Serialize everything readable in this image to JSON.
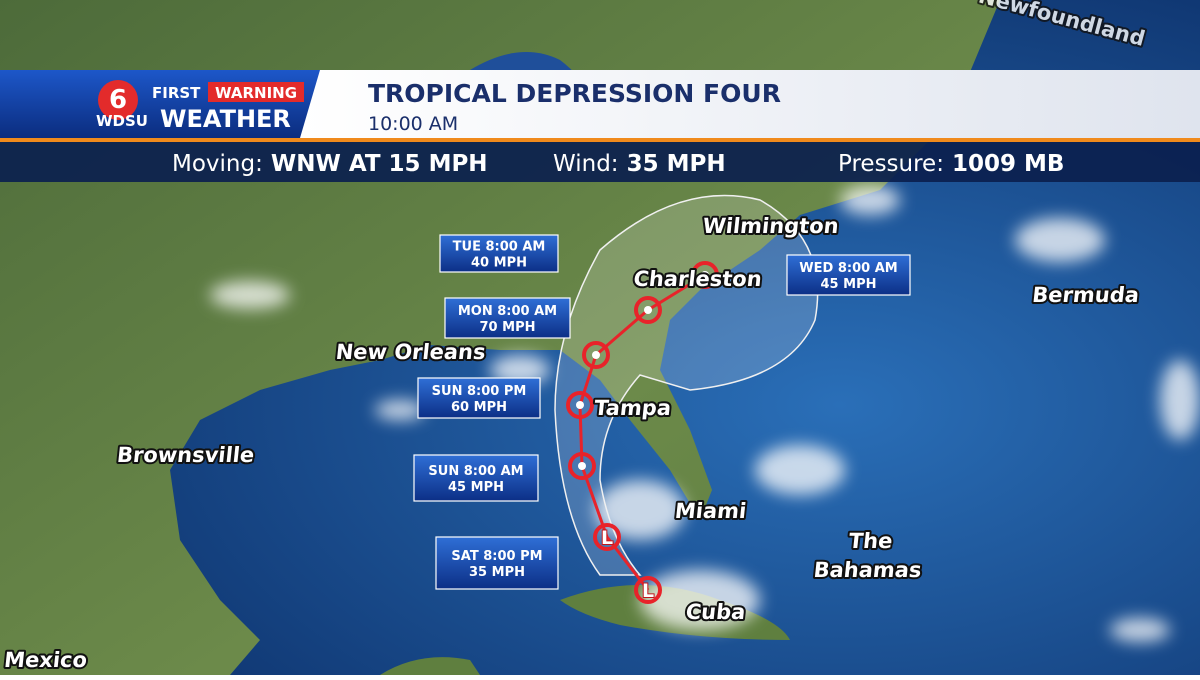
{
  "logo": {
    "number": "6",
    "first": "FIRST",
    "warning": "WARNING",
    "station": "WDSU",
    "weather": "WEATHER"
  },
  "header": {
    "title": "TROPICAL DEPRESSION FOUR",
    "time": "10:00 AM"
  },
  "stats": [
    {
      "label": "Moving:",
      "value": "WNW AT 15 MPH"
    },
    {
      "label": "Wind:",
      "value": "35 MPH"
    },
    {
      "label": "Pressure:",
      "value": "1009 MB"
    }
  ],
  "current": {
    "symbol": "L"
  },
  "forecast": [
    {
      "time": "SAT 8:00 PM",
      "wind": "35 MPH",
      "symbol": "L"
    },
    {
      "time": "SUN 8:00 AM",
      "wind": "45 MPH"
    },
    {
      "time": "SUN 8:00 PM",
      "wind": "60 MPH"
    },
    {
      "time": "MON 8:00 AM",
      "wind": "70 MPH"
    },
    {
      "time": "TUE 8:00 AM",
      "wind": "40 MPH"
    },
    {
      "time": "WED 8:00 AM",
      "wind": "45 MPH"
    }
  ],
  "places": [
    {
      "lines": [
        "Wilmington"
      ]
    },
    {
      "lines": [
        "Charleston"
      ]
    },
    {
      "lines": [
        "New Orleans"
      ]
    },
    {
      "lines": [
        "Tampa"
      ]
    },
    {
      "lines": [
        "Brownsville"
      ]
    },
    {
      "lines": [
        "Miami"
      ]
    },
    {
      "lines": [
        "The",
        "Bahamas"
      ]
    },
    {
      "lines": [
        "Cuba"
      ]
    },
    {
      "lines": [
        "Bermuda"
      ]
    },
    {
      "lines": [
        "Mexico"
      ]
    },
    {
      "lines": [
        "Newfoundland"
      ]
    }
  ]
}
